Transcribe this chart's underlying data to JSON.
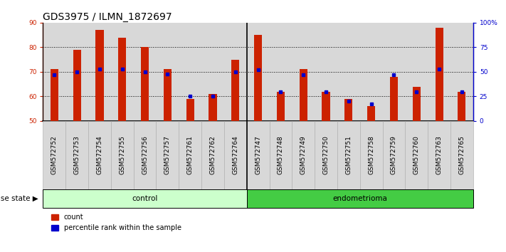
{
  "title": "GDS3975 / ILMN_1872697",
  "samples": [
    "GSM572752",
    "GSM572753",
    "GSM572754",
    "GSM572755",
    "GSM572756",
    "GSM572757",
    "GSM572761",
    "GSM572762",
    "GSM572764",
    "GSM572747",
    "GSM572748",
    "GSM572749",
    "GSM572750",
    "GSM572751",
    "GSM572758",
    "GSM572759",
    "GSM572760",
    "GSM572763",
    "GSM572765"
  ],
  "count_values": [
    71,
    79,
    87,
    84,
    80,
    71,
    59,
    61,
    75,
    85,
    62,
    71,
    62,
    59,
    56,
    68,
    64,
    88,
    62
  ],
  "percentile_values": [
    47,
    50,
    53,
    53,
    50,
    48,
    25,
    25,
    50,
    52,
    30,
    47,
    30,
    20,
    17,
    47,
    30,
    53,
    30
  ],
  "control_count": 9,
  "endometrioma_count": 10,
  "control_label": "control",
  "endometrioma_label": "endometrioma",
  "disease_state_label": "disease state",
  "count_legend": "count",
  "percentile_legend": "percentile rank within the sample",
  "ylim_left": [
    50,
    90
  ],
  "ylim_right": [
    0,
    100
  ],
  "yticks_left": [
    50,
    60,
    70,
    80,
    90
  ],
  "yticks_right": [
    0,
    25,
    50,
    75,
    100
  ],
  "ytick_labels_right": [
    "0",
    "25",
    "50",
    "75",
    "100%"
  ],
  "bar_color": "#cc2200",
  "percentile_color": "#0000cc",
  "control_bg": "#ccffcc",
  "endometrioma_bg": "#44cc44",
  "sample_bg": "#d8d8d8",
  "bar_width": 0.35,
  "title_fontsize": 10,
  "tick_fontsize": 6.5,
  "label_fontsize": 7.5,
  "legend_fontsize": 7
}
